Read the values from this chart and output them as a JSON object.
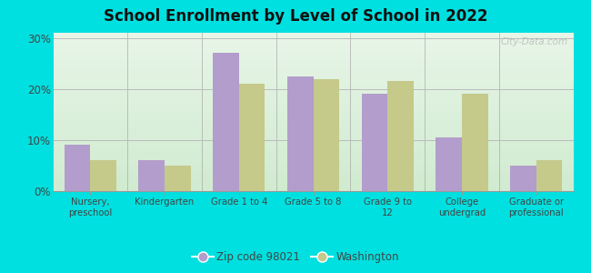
{
  "title": "School Enrollment by Level of School in 2022",
  "categories": [
    "Nursery,\npreschool",
    "Kindergarten",
    "Grade 1 to 4",
    "Grade 5 to 8",
    "Grade 9 to\n12",
    "College\nundergrad",
    "Graduate or\nprofessional"
  ],
  "zip_values": [
    9.0,
    6.0,
    27.0,
    22.5,
    19.0,
    10.5,
    5.0
  ],
  "wa_values": [
    6.0,
    5.0,
    21.0,
    22.0,
    21.5,
    19.0,
    6.0
  ],
  "zip_color": "#b39dcc",
  "wa_color": "#c5c98a",
  "background_outer": "#00e0e0",
  "background_plot": "#e8f5e9",
  "grid_color": "#bbbbbb",
  "title_color": "#111111",
  "title_fontsize": 12,
  "tick_label_color": "#444444",
  "legend_zip_label": "Zip code 98021",
  "legend_wa_label": "Washington",
  "ylim": [
    0,
    31
  ],
  "yticks": [
    0,
    10,
    20,
    30
  ],
  "ytick_labels": [
    "0%",
    "10%",
    "20%",
    "30%"
  ],
  "bar_width": 0.35,
  "watermark": "City-Data.com"
}
